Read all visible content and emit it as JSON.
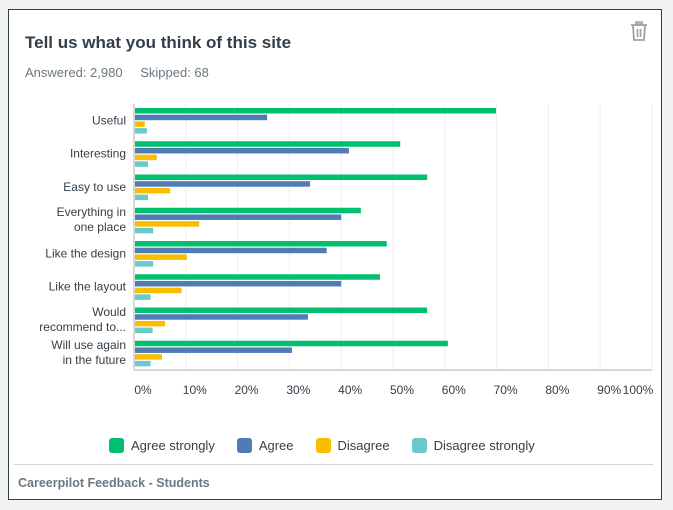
{
  "card": {
    "title": "Tell us what you think of this site",
    "answered_label": "Answered: 2,980",
    "skipped_label": "Skipped: 68",
    "delete_icon": "trash-icon",
    "footer": "Careerpilot Feedback - Students"
  },
  "colors": {
    "agree_strongly": "#00bf6f",
    "agree": "#507cb6",
    "disagree": "#f9be00",
    "disagree_strongly": "#6bc8cd",
    "grid": "#eeeeee",
    "axis": "#cccccc",
    "text": "#333e48"
  },
  "chart_data": {
    "type": "bar",
    "orientation": "horizontal",
    "title": "Tell us what you think of this site",
    "xlabel": "",
    "ylabel": "",
    "xlim": [
      0,
      100
    ],
    "x_ticks": [
      "0%",
      "10%",
      "20%",
      "30%",
      "40%",
      "50%",
      "60%",
      "70%",
      "80%",
      "90%",
      "100%"
    ],
    "grid": true,
    "legend_position": "bottom",
    "categories": [
      [
        "Useful"
      ],
      [
        "Interesting"
      ],
      [
        "Easy to use"
      ],
      [
        "Everything in",
        "one place"
      ],
      [
        "Like the design"
      ],
      [
        "Like the layout"
      ],
      [
        "Would",
        "recommend to..."
      ],
      [
        "Will use again",
        "in the future"
      ]
    ],
    "series": [
      {
        "name": "Agree strongly",
        "key": "agree_strongly",
        "values": [
          69.7,
          51.2,
          56.4,
          43.6,
          48.6,
          47.3,
          56.4,
          60.4
        ]
      },
      {
        "name": "Agree",
        "key": "agree",
        "values": [
          25.5,
          41.3,
          33.8,
          39.8,
          37.0,
          39.8,
          33.4,
          30.3
        ]
      },
      {
        "name": "Disagree",
        "key": "disagree",
        "values": [
          1.9,
          4.2,
          6.8,
          12.4,
          10.0,
          9.0,
          5.8,
          5.2
        ]
      },
      {
        "name": "Disagree strongly",
        "key": "disagree_strongly",
        "values": [
          2.3,
          2.5,
          2.5,
          3.5,
          3.5,
          3.0,
          3.4,
          3.0
        ]
      }
    ]
  }
}
